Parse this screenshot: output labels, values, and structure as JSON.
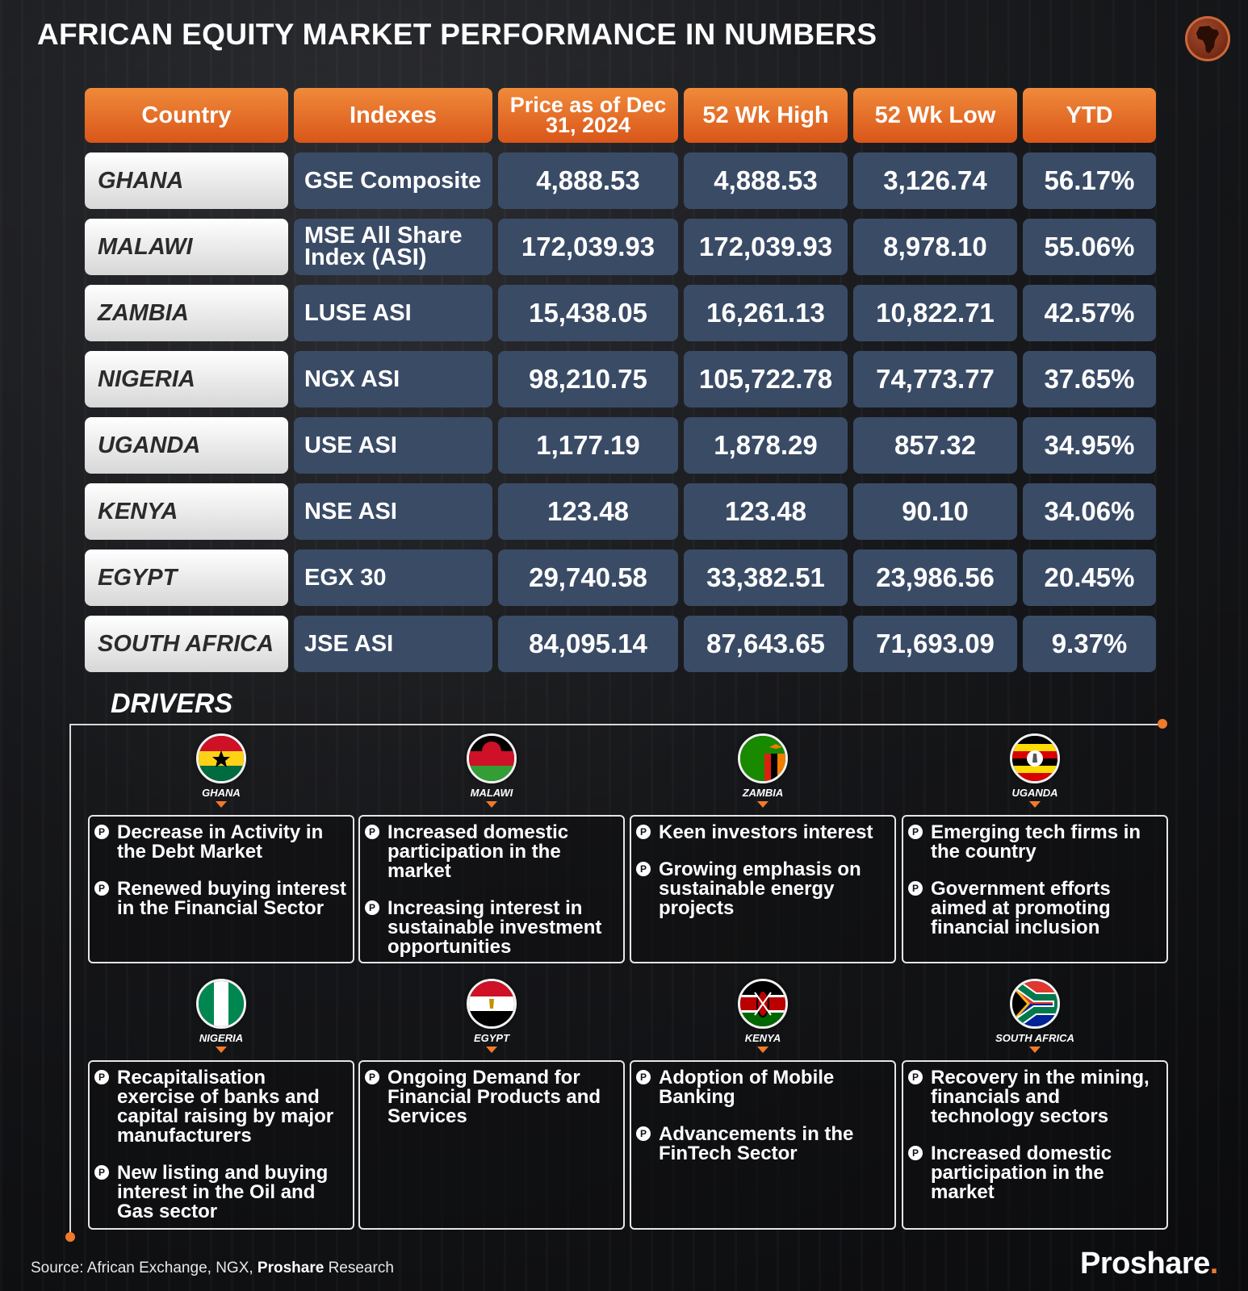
{
  "title": "AFRICAN EQUITY MARKET PERFORMANCE IN NUMBERS",
  "table": {
    "headers": [
      "Country",
      "Indexes",
      "Price as of Dec 31, 2024",
      "52 Wk High",
      "52 Wk Low",
      "YTD"
    ],
    "rows": [
      {
        "country": "GHANA",
        "index": "GSE Composite",
        "price": "4,888.53",
        "high": "4,888.53",
        "low": "3,126.74",
        "ytd": "56.17%"
      },
      {
        "country": "MALAWI",
        "index": "MSE All Share Index (ASI)",
        "price": "172,039.93",
        "high": "172,039.93",
        "low": "8,978.10",
        "ytd": "55.06%"
      },
      {
        "country": "ZAMBIA",
        "index": "LUSE ASI",
        "price": "15,438.05",
        "high": "16,261.13",
        "low": "10,822.71",
        "ytd": "42.57%"
      },
      {
        "country": "NIGERIA",
        "index": "NGX ASI",
        "price": "98,210.75",
        "high": "105,722.78",
        "low": "74,773.77",
        "ytd": "37.65%"
      },
      {
        "country": "UGANDA",
        "index": "USE ASI",
        "price": "1,177.19",
        "high": "1,878.29",
        "low": "857.32",
        "ytd": "34.95%"
      },
      {
        "country": "KENYA",
        "index": "NSE ASI",
        "price": "123.48",
        "high": "123.48",
        "low": "90.10",
        "ytd": "34.06%"
      },
      {
        "country": "EGYPT",
        "index": "EGX 30",
        "price": "29,740.58",
        "high": "33,382.51",
        "low": "23,986.56",
        "ytd": "20.45%"
      },
      {
        "country": "SOUTH AFRICA",
        "index": "JSE ASI",
        "price": "84,095.14",
        "high": "87,643.65",
        "low": "71,693.09",
        "ytd": "9.37%"
      }
    ]
  },
  "drivers": {
    "title": "DRIVERS",
    "bullet_mark": "P",
    "items": [
      {
        "country": "GHANA",
        "flag": "ghana-flag",
        "points": [
          "Decrease in Activity in the Debt Market",
          "Renewed buying interest in the Financial Sector"
        ]
      },
      {
        "country": "MALAWI",
        "flag": "malawi-flag",
        "points": [
          "Increased domestic participation in the market",
          "Increasing interest in sustainable investment opportunities"
        ]
      },
      {
        "country": "ZAMBIA",
        "flag": "zambia-flag",
        "points": [
          "Keen investors interest",
          "Growing emphasis on sustainable energy projects"
        ]
      },
      {
        "country": "UGANDA",
        "flag": "uganda-flag",
        "points": [
          "Emerging tech firms in the country",
          "Government efforts aimed at promoting financial inclusion"
        ]
      },
      {
        "country": "NIGERIA",
        "flag": "nigeria-flag",
        "points": [
          "Recapitalisation exercise of banks and capital raising by major  manufacturers",
          "New listing and buying interest in the Oil and Gas sector"
        ]
      },
      {
        "country": "EGYPT",
        "flag": "egypt-flag",
        "points": [
          "Ongoing Demand for Financial Products and Services"
        ]
      },
      {
        "country": "KENYA",
        "flag": "kenya-flag",
        "points": [
          "Adoption of Mobile Banking",
          "Advancements in the FinTech Sector"
        ]
      },
      {
        "country": "SOUTH AFRICA",
        "flag": "south-africa-flag",
        "points": [
          "Recovery in the mining, financials and technology sectors",
          "Increased domestic participation in the market"
        ]
      }
    ]
  },
  "footer": {
    "source_prefix": "Source: African Exchange, NGX, ",
    "source_bold": "Proshare",
    "source_suffix": " Research",
    "brand": "Proshare",
    "brand_dot": "."
  },
  "colors": {
    "header_orange": "#e8692a",
    "cell_blue": "#3a4b66",
    "accent": "#f07a2a"
  }
}
